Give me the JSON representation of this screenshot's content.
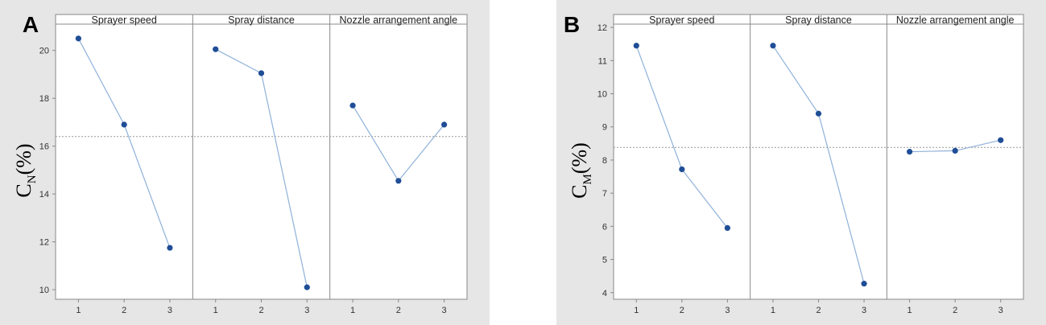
{
  "panels": [
    {
      "label": "A",
      "ylabel_main": "C",
      "ylabel_sub": "N",
      "ylabel_unit": "(%)",
      "chart_data": {
        "type": "line",
        "title": "",
        "ylabel": "CN(%)",
        "ylim": [
          9.6,
          21.1
        ],
        "yticks": [
          10,
          12,
          14,
          16,
          18,
          20
        ],
        "reference_mean": 16.4,
        "grid": false,
        "facets": [
          {
            "title": "Sprayer speed",
            "x": [
              "1",
              "2",
              "3"
            ],
            "values": [
              20.5,
              16.9,
              11.75
            ]
          },
          {
            "title": "Spray distance",
            "x": [
              "1",
              "2",
              "3"
            ],
            "values": [
              20.05,
              19.05,
              10.1
            ]
          },
          {
            "title": "Nozzle arrangement angle",
            "x": [
              "1",
              "2",
              "3"
            ],
            "values": [
              17.7,
              14.55,
              16.9
            ]
          }
        ]
      }
    },
    {
      "label": "B",
      "ylabel_main": "C",
      "ylabel_sub": "M",
      "ylabel_unit": "(%)",
      "chart_data": {
        "type": "line",
        "title": "",
        "ylabel": "CM(%)",
        "ylim": [
          3.8,
          12.1
        ],
        "yticks": [
          4,
          5,
          6,
          7,
          8,
          9,
          10,
          11,
          12
        ],
        "reference_mean": 8.38,
        "grid": false,
        "facets": [
          {
            "title": "Sprayer speed",
            "x": [
              "1",
              "2",
              "3"
            ],
            "values": [
              11.45,
              7.72,
              5.95
            ]
          },
          {
            "title": "Spray distance",
            "x": [
              "1",
              "2",
              "3"
            ],
            "values": [
              11.45,
              9.4,
              4.27
            ]
          },
          {
            "title": "Nozzle arrangement angle",
            "x": [
              "1",
              "2",
              "3"
            ],
            "values": [
              8.25,
              8.28,
              8.6
            ]
          }
        ]
      }
    }
  ],
  "colors": {
    "panel_background": "#e6e6e6",
    "plot_background": "#ffffff",
    "line": "#8fb1d9",
    "marker": "#1f4e96",
    "reference": "#999999",
    "axis": "#888888"
  }
}
